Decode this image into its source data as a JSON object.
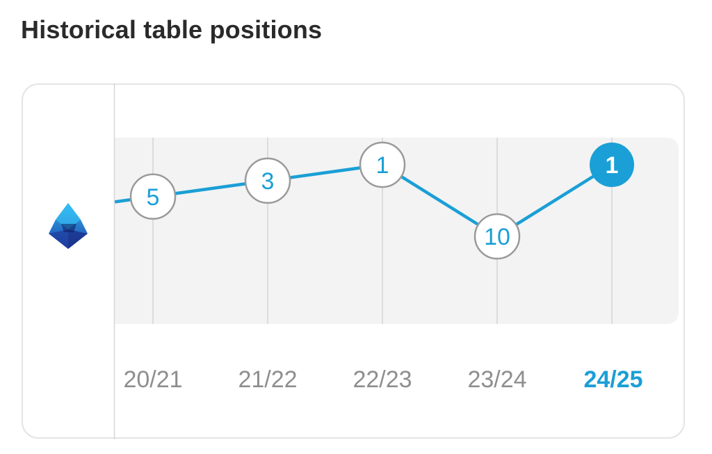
{
  "header": {
    "title": "Historical table positions"
  },
  "league": {
    "icon": "league-logo-icon"
  },
  "colors": {
    "accent": "#1a9fd6",
    "marker_border": "#9a9a9a",
    "plot_band": "#f3f3f3",
    "gridline": "#dcdcdc",
    "tick_label": "#8e8e8e"
  },
  "chart_data": {
    "type": "line",
    "categories": [
      "20/21",
      "21/22",
      "22/23",
      "23/24",
      "24/25"
    ],
    "series": [
      {
        "values": [
          5,
          3,
          1,
          10,
          1
        ]
      }
    ],
    "highlight_category": "24/25",
    "ylim": [
      1,
      10
    ],
    "y_inverted": true,
    "grid": true,
    "legend": "none"
  }
}
